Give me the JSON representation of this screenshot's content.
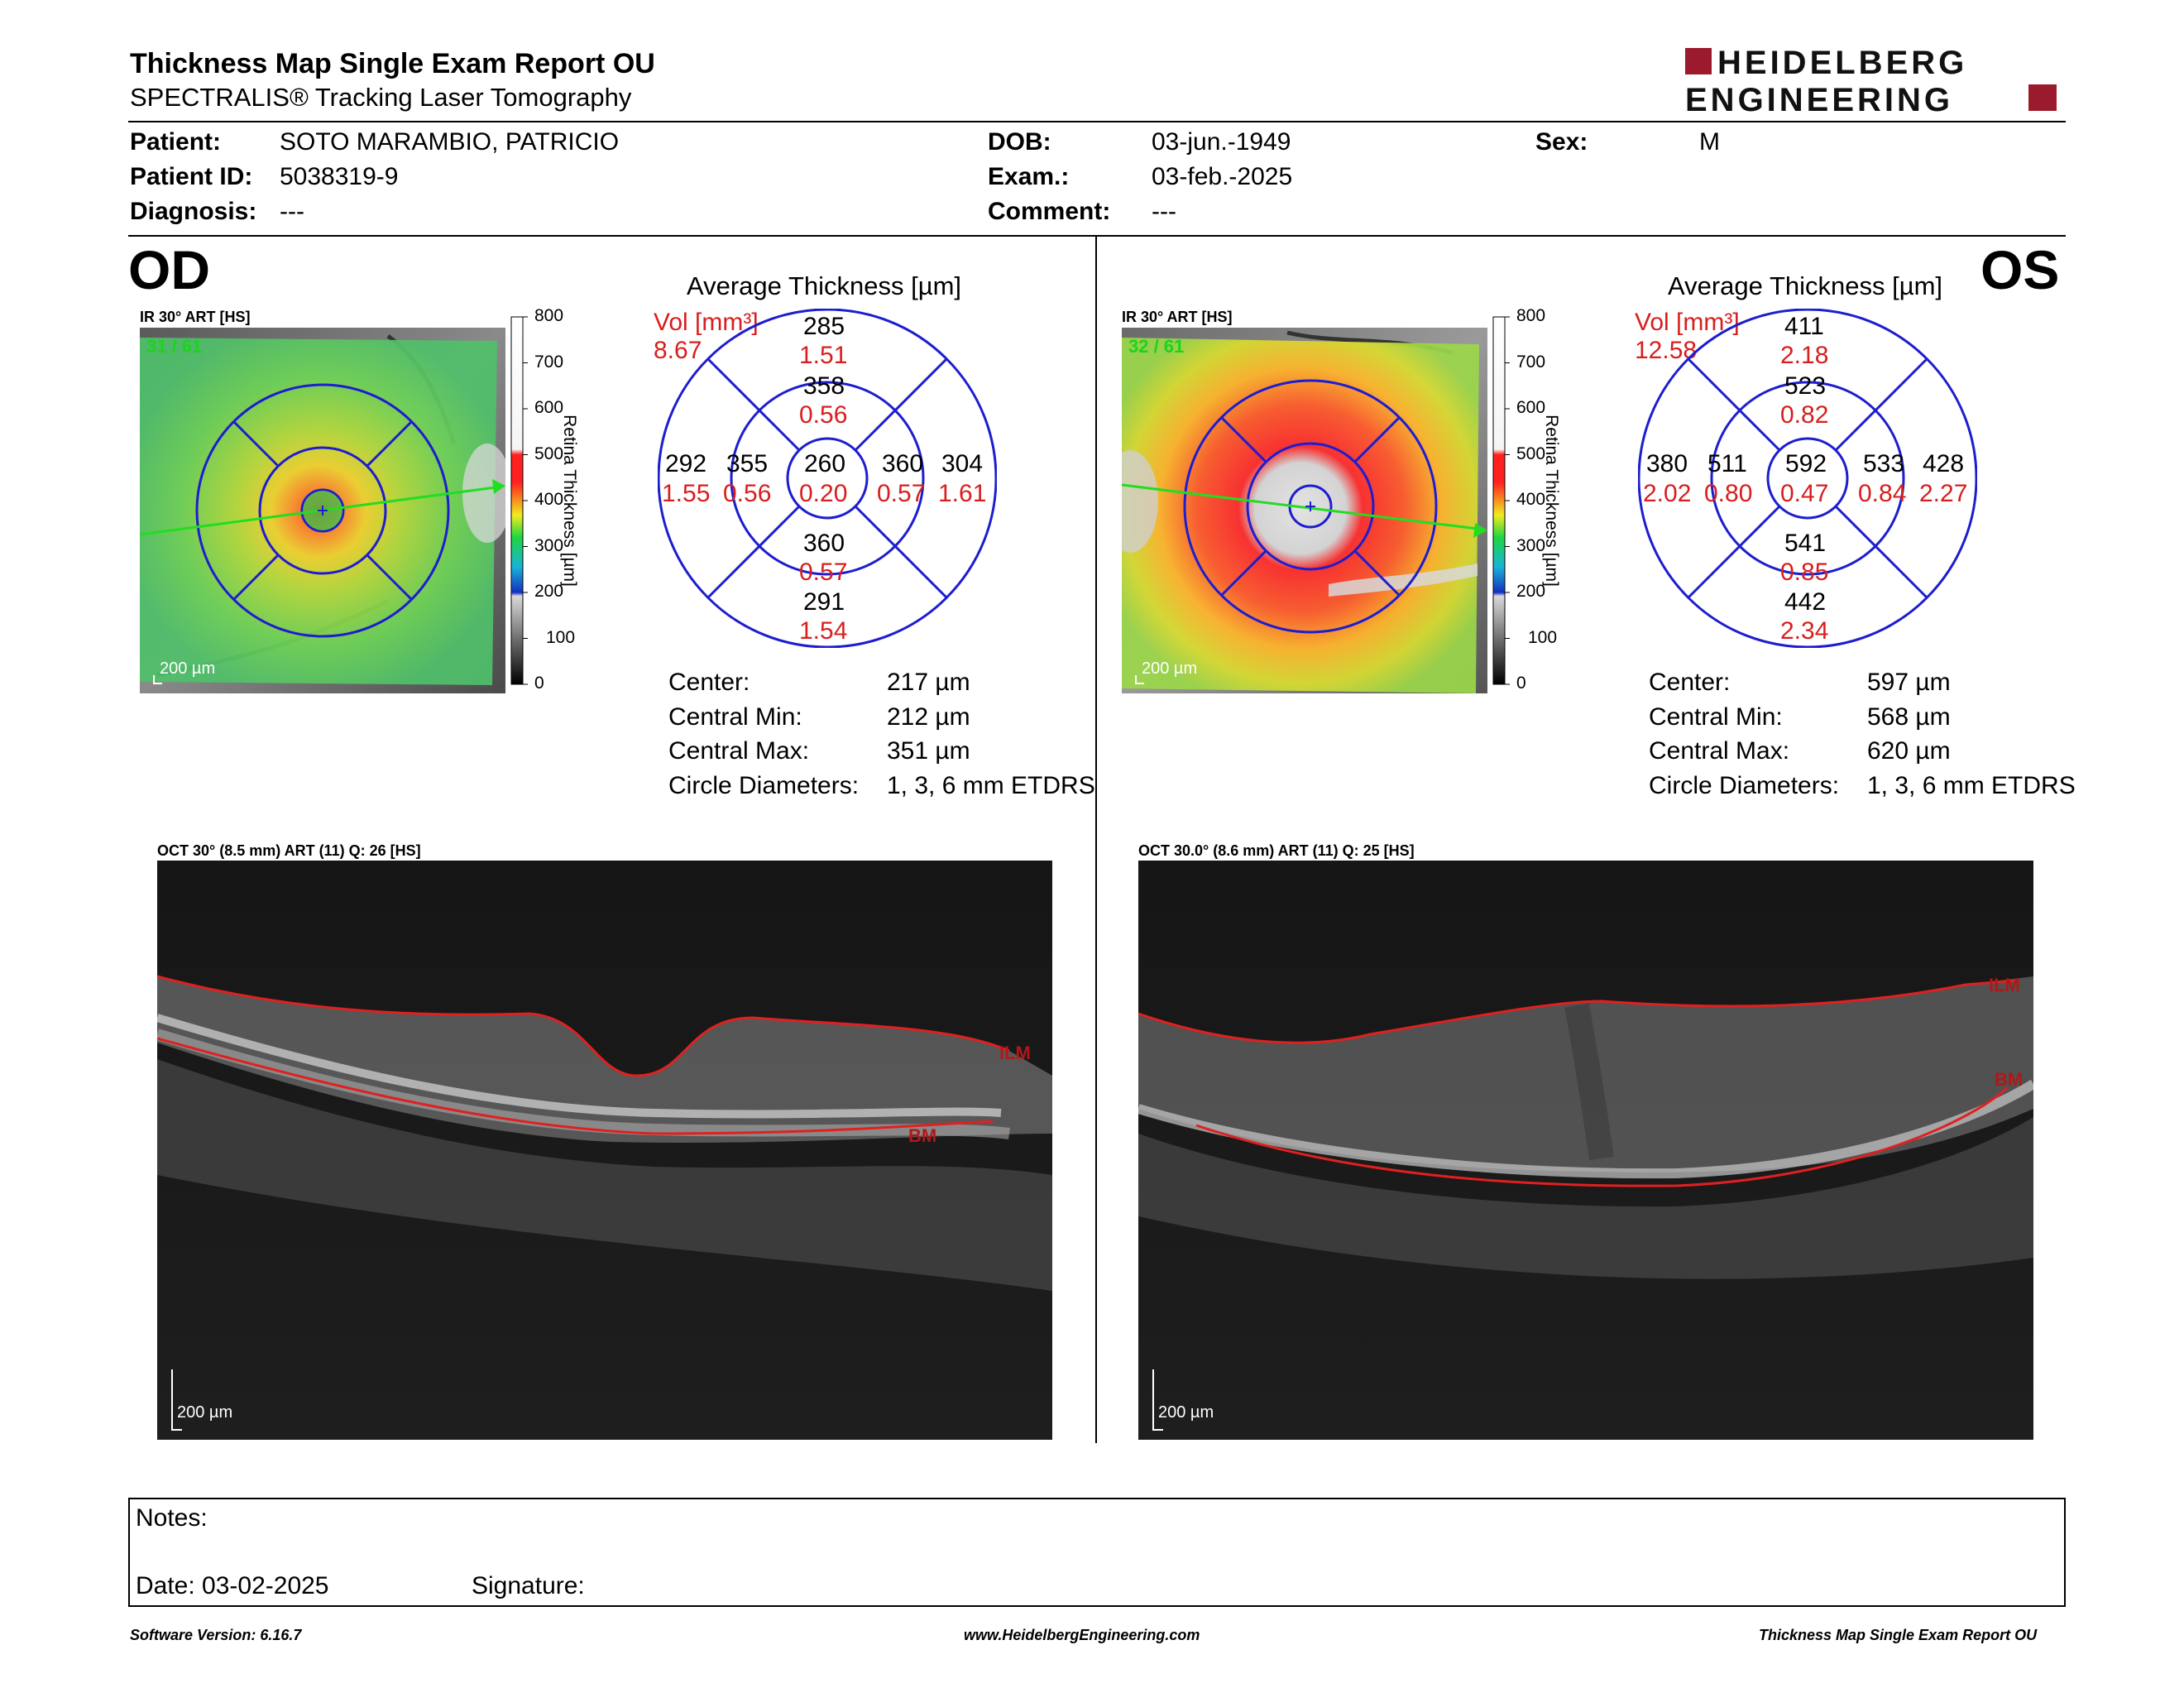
{
  "header": {
    "title": "Thickness Map Single Exam Report OU",
    "subtitle": "SPECTRALIS® Tracking Laser Tomography",
    "logo_line1": "HEIDELBERG",
    "logo_line2": "ENGINEERING"
  },
  "patient": {
    "patient_label": "Patient:",
    "patient_value": "SOTO MARAMBIO, PATRICIO",
    "id_label": "Patient ID:",
    "id_value": "5038319-9",
    "diagnosis_label": "Diagnosis:",
    "diagnosis_value": "---",
    "dob_label": "DOB:",
    "dob_value": "03-jun.-1949",
    "exam_label": "Exam.:",
    "exam_value": "03-feb.-2025",
    "comment_label": "Comment:",
    "comment_value": "---",
    "sex_label": "Sex:",
    "sex_value": "M"
  },
  "colorbar": {
    "ticks": [
      "800",
      "700",
      "600",
      "500",
      "400",
      "300",
      "200",
      "100",
      "0"
    ],
    "label": "Retina Thickness [µm]"
  },
  "od": {
    "eye": "OD",
    "ir_label": "IR 30° ART [HS]",
    "frame": "31 / 61",
    "scale": "200 µm",
    "avg_title": "Average Thickness [µm]",
    "vol_label": "Vol [mm³]",
    "vol_value": "8.67",
    "sectors": {
      "outer_sup": {
        "t": "285",
        "v": "1.51"
      },
      "inner_sup": {
        "t": "358",
        "v": "0.56"
      },
      "outer_temp": {
        "t": "292",
        "v": "1.55"
      },
      "inner_temp": {
        "t": "355",
        "v": "0.56"
      },
      "center": {
        "t": "260",
        "v": "0.20"
      },
      "inner_nasal": {
        "t": "360",
        "v": "0.57"
      },
      "outer_nasal": {
        "t": "304",
        "v": "1.61"
      },
      "inner_inf": {
        "t": "360",
        "v": "0.57"
      },
      "outer_inf": {
        "t": "291",
        "v": "1.54"
      }
    },
    "stats": [
      {
        "label": "Center:",
        "value": "217 µm"
      },
      {
        "label": "Central Min:",
        "value": "212 µm"
      },
      {
        "label": "Central Max:",
        "value": "351 µm"
      },
      {
        "label": "Circle Diameters:",
        "value": "1, 3, 6 mm ETDRS"
      }
    ],
    "oct_label": "OCT 30° (8.5 mm) ART (11) Q: 26 [HS]",
    "oct_scale": "200 µm",
    "ilm": "ILM",
    "bm": "BM"
  },
  "os": {
    "eye": "OS",
    "ir_label": "IR 30° ART [HS]",
    "frame": "32 / 61",
    "scale": "200 µm",
    "avg_title": "Average Thickness [µm]",
    "vol_label": "Vol [mm³]",
    "vol_value": "12.58",
    "sectors": {
      "outer_sup": {
        "t": "411",
        "v": "2.18"
      },
      "inner_sup": {
        "t": "523",
        "v": "0.82"
      },
      "outer_temp": {
        "t": "380",
        "v": "2.02"
      },
      "inner_temp": {
        "t": "511",
        "v": "0.80"
      },
      "center": {
        "t": "592",
        "v": "0.47"
      },
      "inner_nasal": {
        "t": "533",
        "v": "0.84"
      },
      "outer_nasal": {
        "t": "428",
        "v": "2.27"
      },
      "inner_inf": {
        "t": "541",
        "v": "0.85"
      },
      "outer_inf": {
        "t": "442",
        "v": "2.34"
      }
    },
    "stats": [
      {
        "label": "Center:",
        "value": "597 µm"
      },
      {
        "label": "Central Min:",
        "value": "568 µm"
      },
      {
        "label": "Central Max:",
        "value": "620 µm"
      },
      {
        "label": "Circle Diameters:",
        "value": "1, 3, 6 mm ETDRS"
      }
    ],
    "oct_label": "OCT 30.0° (8.6 mm) ART (11) Q: 25 [HS]",
    "oct_scale": "200 µm",
    "ilm": "ILM",
    "bm": "BM"
  },
  "notes": {
    "notes_label": "Notes:",
    "date_label": "Date: 03-02-2025",
    "signature_label": "Signature:"
  },
  "footer": {
    "software": "Software Version: 6.16.7",
    "website": "www.HeidelbergEngineering.com",
    "report": "Thickness Map Single Exam Report OU"
  },
  "colors": {
    "logo_red": "#9b1b2c",
    "grid_blue": "#1d1dd0",
    "value_red": "#d81e1e",
    "oct_line_red": "#e02020"
  }
}
